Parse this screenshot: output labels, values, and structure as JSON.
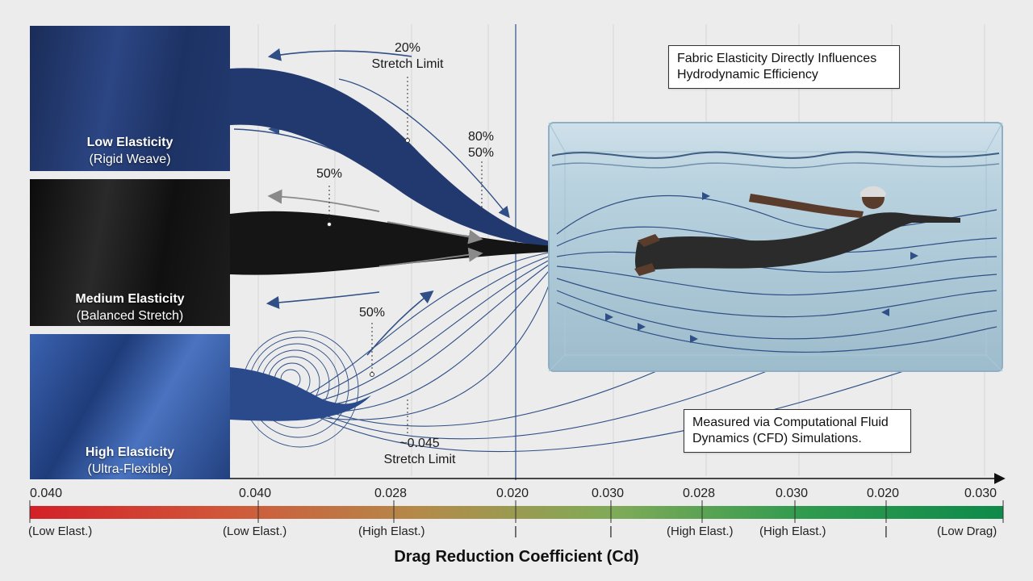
{
  "swatches": [
    {
      "title": "Low Elasticity",
      "subtitle": "(Rigid Weave)",
      "color": "#1f3366"
    },
    {
      "title": "Medium Elasticity",
      "subtitle": "(Balanced Stretch)",
      "color": "#161616"
    },
    {
      "title": "High Elasticity",
      "subtitle": "(Ultra-Flexible)",
      "color": "#2a4a8c"
    }
  ],
  "callouts": {
    "top_value": "20%",
    "top_text": "Stretch Limit",
    "right_a": "80%",
    "right_b": "50%",
    "mid_top": "50%",
    "mid_low": "50%",
    "bottom_value": "~0.045",
    "bottom_text": "Stretch Limit"
  },
  "notes": {
    "top": "Fabric Elasticity Directly Influences Hydrodynamic Efficiency",
    "bottom": "Measured via Computational Fluid Dynamics (CFD) Simulations."
  },
  "axis": {
    "title": "Drag Reduction Coefficient (Cd)",
    "gradient": [
      "#d32027",
      "#d0573a",
      "#b48a4a",
      "#7fab58",
      "#2f9a4e",
      "#0e8a4a"
    ],
    "ticks": [
      {
        "value": "0.040",
        "label": "(Low Elast.)"
      },
      {
        "value": "0.040",
        "label": "(Low Elast.)"
      },
      {
        "value": "0.028",
        "label": "(High Elast.)"
      },
      {
        "value": "0.020",
        "label": "|"
      },
      {
        "value": "0.030",
        "label": "|"
      },
      {
        "value": "0.028",
        "label": "(High Elast.)"
      },
      {
        "value": "0.030",
        "label": "(High Elast.)"
      },
      {
        "value": "0.020",
        "label": "|"
      },
      {
        "value": "0.030",
        "label": "(Low Drag)"
      }
    ]
  }
}
